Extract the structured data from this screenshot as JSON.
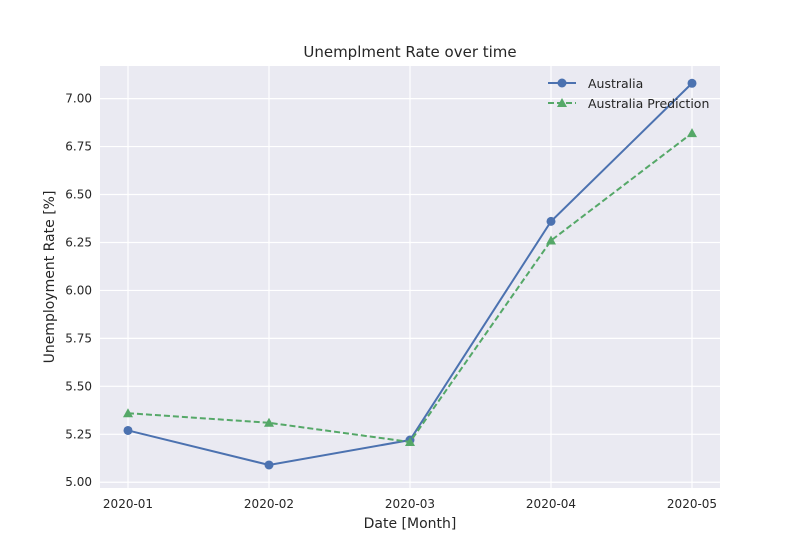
{
  "chart_data": {
    "type": "line",
    "title": "Unemplment Rate over time",
    "xlabel": "Date [Month]",
    "ylabel": "Unemployment Rate [%]",
    "categories": [
      "2020-01",
      "2020-02",
      "2020-03",
      "2020-04",
      "2020-05"
    ],
    "ylim": [
      4.97,
      7.17
    ],
    "yticks": [
      "5.00",
      "5.25",
      "5.50",
      "5.75",
      "6.00",
      "6.25",
      "6.50",
      "6.75",
      "7.00"
    ],
    "grid": true,
    "legend_position": "top-right",
    "series": [
      {
        "name": "Australia",
        "values": [
          5.27,
          5.09,
          5.22,
          6.36,
          7.08
        ],
        "color": "#4c72b0",
        "marker": "circle",
        "linestyle": "solid"
      },
      {
        "name": "Australia Prediction",
        "values": [
          5.36,
          5.31,
          5.21,
          6.26,
          6.82
        ],
        "color": "#55a868",
        "marker": "triangle",
        "linestyle": "dashed"
      }
    ]
  }
}
